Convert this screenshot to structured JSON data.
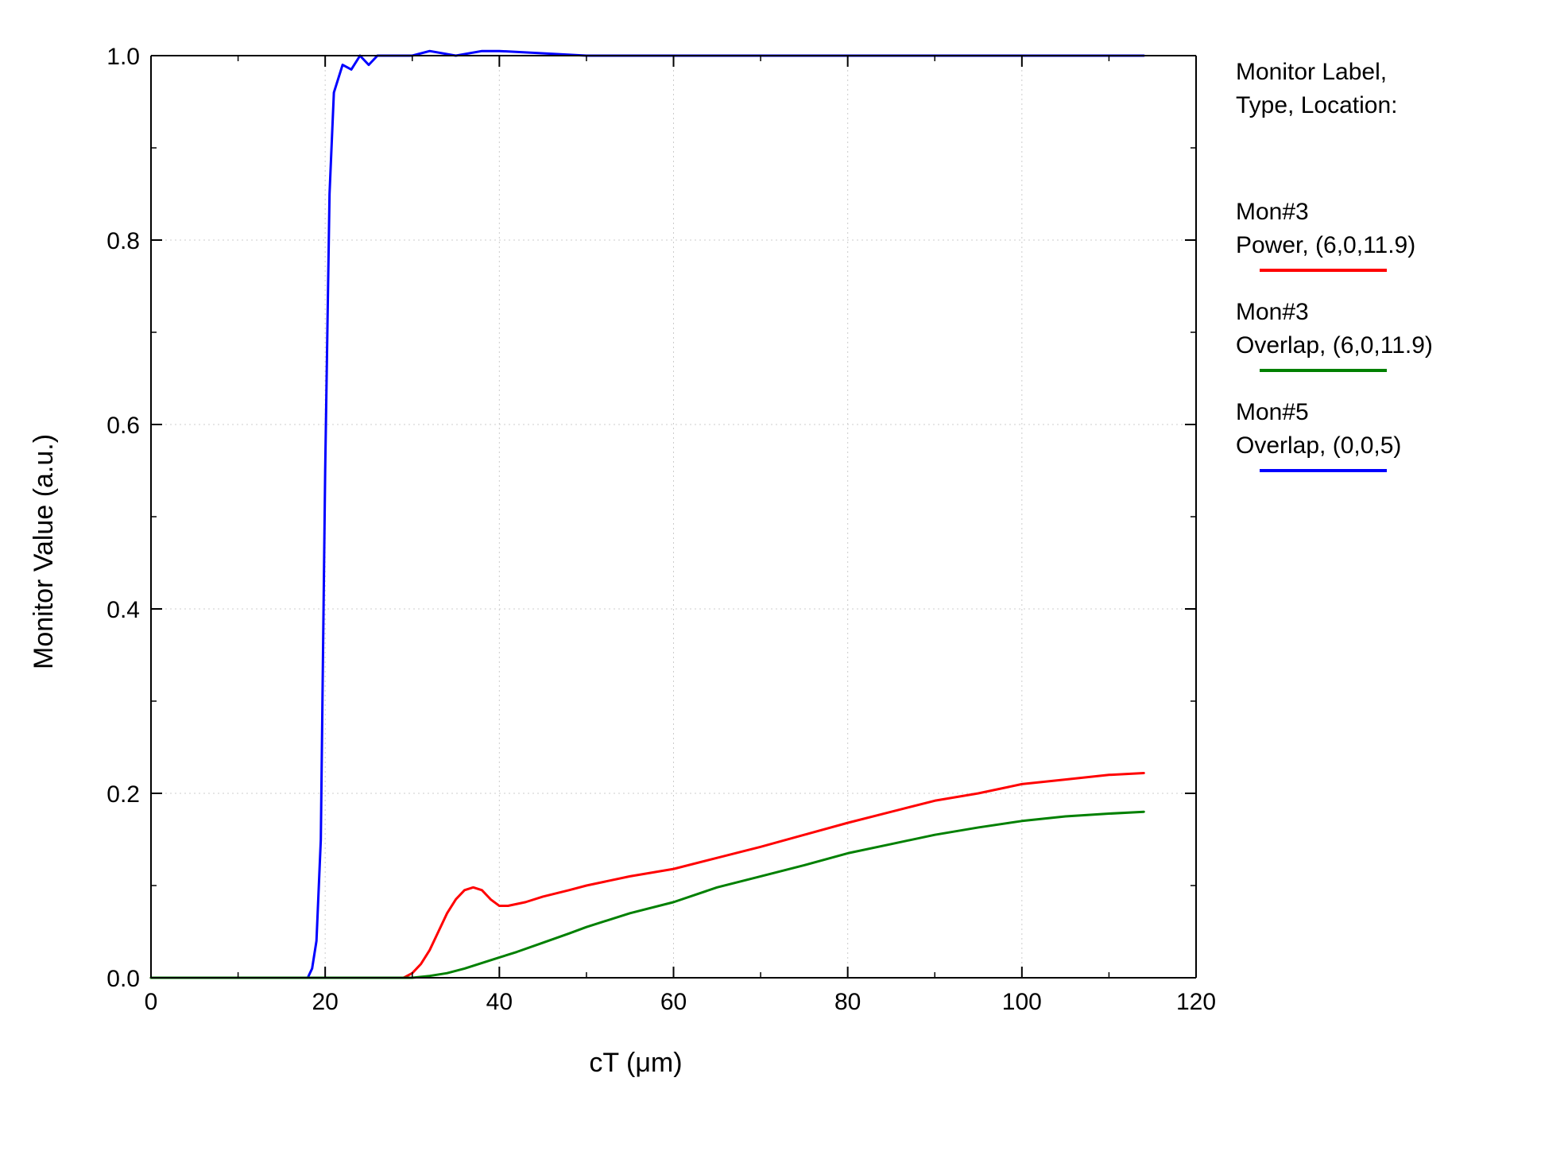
{
  "chart": {
    "type": "line",
    "background_color": "#ffffff",
    "axis_color": "#000000",
    "grid_color": "#cccccc",
    "grid_dash": "2,4",
    "line_width": 3,
    "axis_line_width": 2,
    "tick_font_size": 30,
    "label_font_size": 34,
    "xlabel": "cT (μm)",
    "ylabel": "Monitor Value (a.u.)",
    "xlim": [
      0,
      120
    ],
    "ylim": [
      0.0,
      1.0
    ],
    "xticks": [
      0,
      20,
      40,
      60,
      80,
      100,
      120
    ],
    "yticks": [
      0.0,
      0.2,
      0.4,
      0.6,
      0.8,
      1.0
    ],
    "minor_tick_count_x": 1,
    "minor_tick_count_y": 1,
    "series": [
      {
        "name": "Mon#5 Overlap (0,0,5)",
        "color": "#0000ff",
        "x": [
          0,
          5,
          10,
          14,
          16,
          17,
          18,
          18.5,
          19,
          19.5,
          20,
          20.5,
          21,
          22,
          23,
          24,
          25,
          26,
          28,
          30,
          32,
          35,
          38,
          40,
          50,
          60,
          80,
          100,
          114
        ],
        "y": [
          0,
          0,
          0,
          0,
          0,
          0,
          0.0,
          0.01,
          0.04,
          0.15,
          0.55,
          0.85,
          0.96,
          0.99,
          0.985,
          1.0,
          0.99,
          1.0,
          1.0,
          1.0,
          1.005,
          1.0,
          1.005,
          1.005,
          1.0,
          1.0,
          1.0,
          1.0,
          1.0
        ]
      },
      {
        "name": "Mon#3 Power (6,0,11.9)",
        "color": "#ff0000",
        "x": [
          0,
          10,
          20,
          28,
          29,
          30,
          31,
          32,
          33,
          34,
          35,
          36,
          37,
          38,
          39,
          40,
          41,
          43,
          45,
          48,
          50,
          55,
          60,
          65,
          70,
          75,
          80,
          85,
          90,
          95,
          100,
          105,
          110,
          114
        ],
        "y": [
          0,
          0,
          0,
          0,
          0,
          0.005,
          0.015,
          0.03,
          0.05,
          0.07,
          0.085,
          0.095,
          0.098,
          0.095,
          0.085,
          0.078,
          0.078,
          0.082,
          0.088,
          0.095,
          0.1,
          0.11,
          0.118,
          0.13,
          0.142,
          0.155,
          0.168,
          0.18,
          0.192,
          0.2,
          0.21,
          0.215,
          0.22,
          0.222
        ]
      },
      {
        "name": "Mon#3 Overlap (6,0,11.9)",
        "color": "#008000",
        "x": [
          0,
          10,
          20,
          28,
          30,
          32,
          34,
          36,
          38,
          40,
          42,
          45,
          48,
          50,
          55,
          60,
          65,
          70,
          75,
          80,
          85,
          90,
          95,
          100,
          105,
          110,
          114
        ],
        "y": [
          0,
          0,
          0,
          0,
          0,
          0.002,
          0.005,
          0.01,
          0.016,
          0.022,
          0.028,
          0.038,
          0.048,
          0.055,
          0.07,
          0.082,
          0.098,
          0.11,
          0.122,
          0.135,
          0.145,
          0.155,
          0.163,
          0.17,
          0.175,
          0.178,
          0.18
        ]
      }
    ]
  },
  "legend": {
    "title_line1": "Monitor Label,",
    "title_line2": "Type, Location:",
    "entries": [
      {
        "line1": "Mon#3",
        "line2": "Power, (6,0,11.9)",
        "color": "#ff0000"
      },
      {
        "line1": "Mon#3",
        "line2": "Overlap, (6,0,11.9)",
        "color": "#008000"
      },
      {
        "line1": "Mon#5",
        "line2": "Overlap, (0,0,5)",
        "color": "#0000ff"
      }
    ]
  }
}
